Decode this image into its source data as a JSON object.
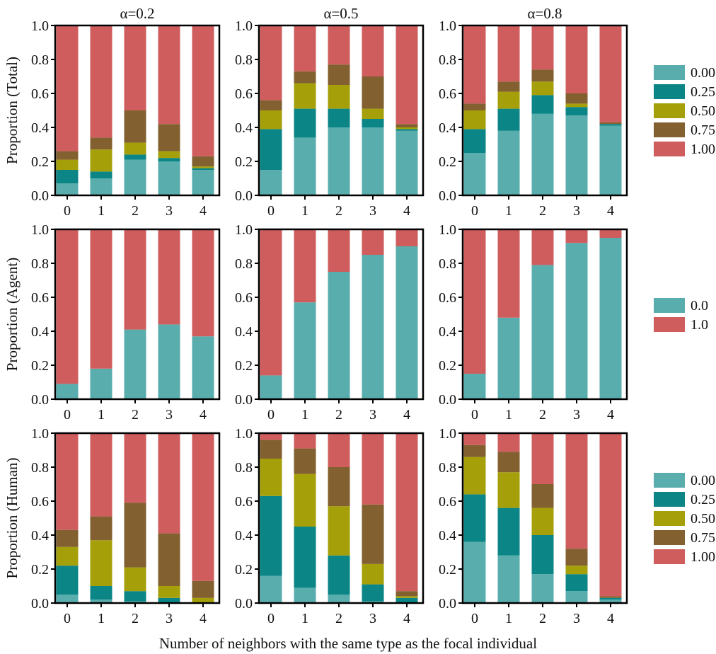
{
  "figure": {
    "xlabel": "Number of neighbors with the same type as the focal individual",
    "col_titles": [
      "α=0.2",
      "α=0.5",
      "α=0.8"
    ],
    "row_ylabels": [
      "Proportion (Total)",
      "Proportion (Agent)",
      "Proportion (Human)"
    ]
  },
  "legends": [
    {
      "row": 0,
      "entries": [
        "0.00",
        "0.25",
        "0.50",
        "0.75",
        "1.00"
      ]
    },
    {
      "row": 1,
      "entries": [
        "0.0",
        "1.0"
      ]
    },
    {
      "row": 2,
      "entries": [
        "0.00",
        "0.25",
        "0.50",
        "0.75",
        "1.00"
      ]
    }
  ],
  "chart_data": [
    {
      "type": "bar",
      "stacked": true,
      "title": "α=0.2",
      "ylabel": "Proportion (Total)",
      "ylim": [
        0,
        1
      ],
      "categories": [
        "0",
        "1",
        "2",
        "3",
        "4"
      ],
      "series": [
        {
          "name": "0.00",
          "values": [
            0.07,
            0.1,
            0.21,
            0.2,
            0.15
          ]
        },
        {
          "name": "0.25",
          "values": [
            0.08,
            0.04,
            0.03,
            0.02,
            0.01
          ]
        },
        {
          "name": "0.50",
          "values": [
            0.06,
            0.13,
            0.07,
            0.04,
            0.01
          ]
        },
        {
          "name": "0.75",
          "values": [
            0.05,
            0.07,
            0.19,
            0.16,
            0.06
          ]
        },
        {
          "name": "1.00",
          "values": [
            0.74,
            0.66,
            0.5,
            0.58,
            0.77
          ]
        }
      ]
    },
    {
      "type": "bar",
      "stacked": true,
      "title": "α=0.5",
      "ylabel": "",
      "ylim": [
        0,
        1
      ],
      "categories": [
        "0",
        "1",
        "2",
        "3",
        "4"
      ],
      "series": [
        {
          "name": "0.00",
          "values": [
            0.15,
            0.34,
            0.4,
            0.4,
            0.38
          ]
        },
        {
          "name": "0.25",
          "values": [
            0.24,
            0.17,
            0.11,
            0.05,
            0.01
          ]
        },
        {
          "name": "0.50",
          "values": [
            0.11,
            0.15,
            0.14,
            0.06,
            0.01
          ]
        },
        {
          "name": "0.75",
          "values": [
            0.06,
            0.07,
            0.12,
            0.19,
            0.02
          ]
        },
        {
          "name": "1.00",
          "values": [
            0.44,
            0.27,
            0.23,
            0.3,
            0.58
          ]
        }
      ]
    },
    {
      "type": "bar",
      "stacked": true,
      "title": "α=0.8",
      "ylabel": "",
      "ylim": [
        0,
        1
      ],
      "categories": [
        "0",
        "1",
        "2",
        "3",
        "4"
      ],
      "series": [
        {
          "name": "0.00",
          "values": [
            0.25,
            0.38,
            0.48,
            0.47,
            0.41
          ]
        },
        {
          "name": "0.25",
          "values": [
            0.14,
            0.13,
            0.11,
            0.05,
            0.01
          ]
        },
        {
          "name": "0.50",
          "values": [
            0.11,
            0.1,
            0.08,
            0.02,
            0.0
          ]
        },
        {
          "name": "0.75",
          "values": [
            0.04,
            0.06,
            0.07,
            0.06,
            0.01
          ]
        },
        {
          "name": "1.00",
          "values": [
            0.46,
            0.33,
            0.26,
            0.4,
            0.57
          ]
        }
      ]
    },
    {
      "type": "bar",
      "stacked": true,
      "title": "",
      "ylabel": "Proportion (Agent)",
      "ylim": [
        0,
        1
      ],
      "categories": [
        "0",
        "1",
        "2",
        "3",
        "4"
      ],
      "series": [
        {
          "name": "0.0",
          "values": [
            0.09,
            0.18,
            0.41,
            0.44,
            0.37
          ]
        },
        {
          "name": "1.0",
          "values": [
            0.91,
            0.82,
            0.59,
            0.56,
            0.63
          ]
        }
      ]
    },
    {
      "type": "bar",
      "stacked": true,
      "title": "",
      "ylabel": "",
      "ylim": [
        0,
        1
      ],
      "categories": [
        "0",
        "1",
        "2",
        "3",
        "4"
      ],
      "series": [
        {
          "name": "0.0",
          "values": [
            0.14,
            0.57,
            0.75,
            0.85,
            0.9
          ]
        },
        {
          "name": "1.0",
          "values": [
            0.86,
            0.43,
            0.25,
            0.15,
            0.1
          ]
        }
      ]
    },
    {
      "type": "bar",
      "stacked": true,
      "title": "",
      "ylabel": "",
      "ylim": [
        0,
        1
      ],
      "categories": [
        "0",
        "1",
        "2",
        "3",
        "4"
      ],
      "series": [
        {
          "name": "0.0",
          "values": [
            0.15,
            0.48,
            0.79,
            0.92,
            0.95
          ]
        },
        {
          "name": "1.0",
          "values": [
            0.85,
            0.52,
            0.21,
            0.08,
            0.05
          ]
        }
      ]
    },
    {
      "type": "bar",
      "stacked": true,
      "title": "",
      "ylabel": "Proportion (Human)",
      "ylim": [
        0,
        1
      ],
      "categories": [
        "0",
        "1",
        "2",
        "3",
        "4"
      ],
      "series": [
        {
          "name": "0.00",
          "values": [
            0.05,
            0.02,
            0.01,
            0.0,
            0.0
          ]
        },
        {
          "name": "0.25",
          "values": [
            0.17,
            0.08,
            0.06,
            0.03,
            0.0
          ]
        },
        {
          "name": "0.50",
          "values": [
            0.11,
            0.27,
            0.14,
            0.07,
            0.03
          ]
        },
        {
          "name": "0.75",
          "values": [
            0.1,
            0.14,
            0.38,
            0.31,
            0.1
          ]
        },
        {
          "name": "1.00",
          "values": [
            0.57,
            0.49,
            0.41,
            0.59,
            0.87
          ]
        }
      ]
    },
    {
      "type": "bar",
      "stacked": true,
      "title": "",
      "ylabel": "",
      "ylim": [
        0,
        1
      ],
      "categories": [
        "0",
        "1",
        "2",
        "3",
        "4"
      ],
      "series": [
        {
          "name": "0.00",
          "values": [
            0.16,
            0.09,
            0.05,
            0.01,
            0.0
          ]
        },
        {
          "name": "0.25",
          "values": [
            0.47,
            0.36,
            0.23,
            0.1,
            0.03
          ]
        },
        {
          "name": "0.50",
          "values": [
            0.22,
            0.31,
            0.29,
            0.12,
            0.01
          ]
        },
        {
          "name": "0.75",
          "values": [
            0.11,
            0.15,
            0.23,
            0.35,
            0.03
          ]
        },
        {
          "name": "1.00",
          "values": [
            0.04,
            0.09,
            0.2,
            0.42,
            0.93
          ]
        }
      ]
    },
    {
      "type": "bar",
      "stacked": true,
      "title": "",
      "ylabel": "",
      "ylim": [
        0,
        1
      ],
      "categories": [
        "0",
        "1",
        "2",
        "3",
        "4"
      ],
      "series": [
        {
          "name": "0.00",
          "values": [
            0.36,
            0.28,
            0.17,
            0.07,
            0.02
          ]
        },
        {
          "name": "0.25",
          "values": [
            0.28,
            0.28,
            0.23,
            0.1,
            0.01
          ]
        },
        {
          "name": "0.50",
          "values": [
            0.22,
            0.21,
            0.16,
            0.05,
            0.0
          ]
        },
        {
          "name": "0.75",
          "values": [
            0.07,
            0.12,
            0.14,
            0.1,
            0.01
          ]
        },
        {
          "name": "1.00",
          "values": [
            0.07,
            0.11,
            0.3,
            0.68,
            0.96
          ]
        }
      ]
    }
  ],
  "palette": {
    "five": [
      "#5aadad",
      "#0b8585",
      "#a5a00a",
      "#82602f",
      "#cf5d5e"
    ],
    "two": [
      "#5aadad",
      "#cf5d5e"
    ]
  }
}
